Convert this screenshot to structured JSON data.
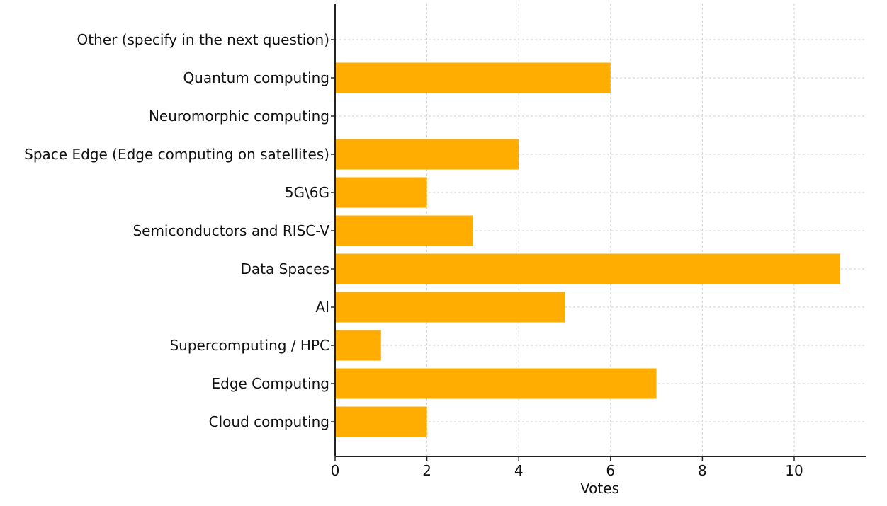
{
  "chart_data": {
    "type": "bar",
    "orientation": "horizontal",
    "categories": [
      "Cloud computing",
      "Edge Computing",
      "Supercomputing / HPC",
      "AI",
      "Data Spaces",
      "Semiconductors and RISC-V",
      "5G\\6G",
      "Space Edge (Edge computing on satellites)",
      "Neuromorphic computing",
      "Quantum computing",
      "Other (specify in the next question)"
    ],
    "values": [
      2,
      7,
      1,
      5,
      11,
      3,
      2,
      4,
      0,
      6,
      0
    ],
    "xlabel": "Votes",
    "ylabel": "",
    "xlim": [
      0,
      11.5
    ],
    "xticks": [
      0,
      2,
      4,
      6,
      8,
      10
    ],
    "grid": true,
    "bar_color": "#FFAD00"
  }
}
